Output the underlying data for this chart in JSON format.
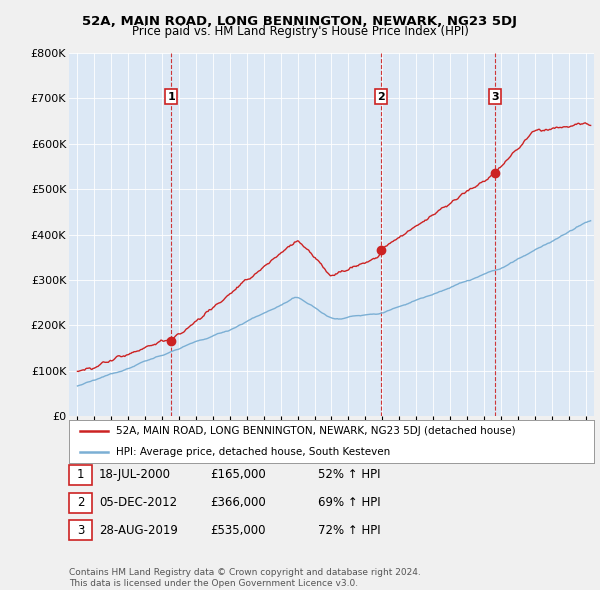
{
  "title1": "52A, MAIN ROAD, LONG BENNINGTON, NEWARK, NG23 5DJ",
  "title2": "Price paid vs. HM Land Registry's House Price Index (HPI)",
  "ylim": [
    0,
    800000
  ],
  "yticks": [
    0,
    100000,
    200000,
    300000,
    400000,
    500000,
    600000,
    700000,
    800000
  ],
  "ytick_labels": [
    "£0",
    "£100K",
    "£200K",
    "£300K",
    "£400K",
    "£500K",
    "£600K",
    "£700K",
    "£800K"
  ],
  "sale_dates": [
    2000.54,
    2012.92,
    2019.65
  ],
  "sale_prices": [
    165000,
    366000,
    535000
  ],
  "sale_labels": [
    "1",
    "2",
    "3"
  ],
  "hpi_color": "#7bafd4",
  "price_color": "#cc2222",
  "dashed_color": "#cc2222",
  "plot_bg_color": "#dce8f5",
  "background_color": "#f0f0f0",
  "legend_label_price": "52A, MAIN ROAD, LONG BENNINGTON, NEWARK, NG23 5DJ (detached house)",
  "legend_label_hpi": "HPI: Average price, detached house, South Kesteven",
  "table_rows": [
    {
      "num": "1",
      "date": "18-JUL-2000",
      "price": "£165,000",
      "hpi": "52% ↑ HPI"
    },
    {
      "num": "2",
      "date": "05-DEC-2012",
      "price": "£366,000",
      "hpi": "69% ↑ HPI"
    },
    {
      "num": "3",
      "date": "28-AUG-2019",
      "price": "£535,000",
      "hpi": "72% ↑ HPI"
    }
  ],
  "footnote": "Contains HM Land Registry data © Crown copyright and database right 2024.\nThis data is licensed under the Open Government Licence v3.0.",
  "xmin": 1994.5,
  "xmax": 2025.5,
  "xtick_start": 1995,
  "xtick_end": 2025
}
